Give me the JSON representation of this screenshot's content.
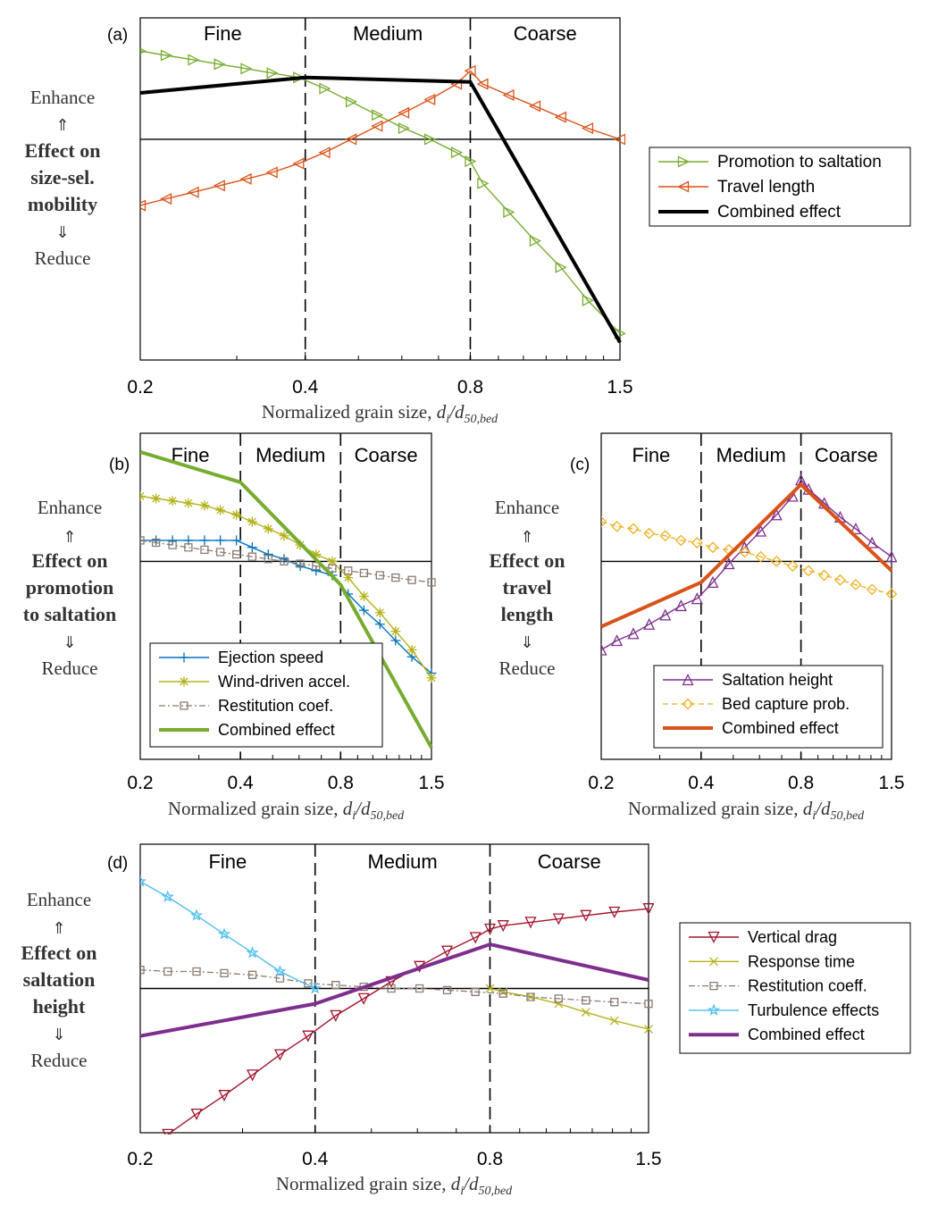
{
  "chart_data": [
    {
      "panel": "(a)",
      "type": "line",
      "x_scale": "log",
      "xlim": [
        0.2,
        1.5
      ],
      "ylim": [
        -1.0,
        0.55
      ],
      "xticks": [
        "0.2",
        "0.4",
        "0.8",
        "1.5"
      ],
      "xlabel": "Normalized grain size,",
      "xlabel_math": [
        "d",
        "i",
        "/d",
        "50,bed"
      ],
      "regions": [
        "Fine",
        "Medium",
        "Coarse"
      ],
      "region_bounds": [
        0.4,
        0.8
      ],
      "ylabel_lines": [
        "Effect on",
        "size-sel.",
        "mobility"
      ],
      "enhance": "Enhance",
      "reduce": "Reduce",
      "series": [
        {
          "name": "Promotion to saltation",
          "color": "#77ac30",
          "style": "thin",
          "marker": "tri-right",
          "x": [
            0.2,
            0.223,
            0.25,
            0.279,
            0.312,
            0.348,
            0.389,
            0.434,
            0.485,
            0.541,
            0.605,
            0.675,
            0.755,
            0.8,
            0.843,
            0.94,
            1.05,
            1.17,
            1.31,
            1.5
          ],
          "y": [
            0.4,
            0.38,
            0.36,
            0.34,
            0.32,
            0.3,
            0.28,
            0.23,
            0.17,
            0.11,
            0.05,
            0.0,
            -0.06,
            -0.1,
            -0.2,
            -0.33,
            -0.46,
            -0.58,
            -0.73,
            -0.88
          ]
        },
        {
          "name": "Travel length",
          "color": "#d95319",
          "style": "thin",
          "marker": "tri-left",
          "x": [
            0.2,
            0.223,
            0.25,
            0.279,
            0.312,
            0.348,
            0.389,
            0.434,
            0.485,
            0.541,
            0.605,
            0.675,
            0.755,
            0.8,
            0.843,
            0.94,
            1.05,
            1.17,
            1.31,
            1.5
          ],
          "y": [
            -0.3,
            -0.27,
            -0.24,
            -0.21,
            -0.18,
            -0.15,
            -0.11,
            -0.06,
            0.0,
            0.06,
            0.12,
            0.18,
            0.25,
            0.31,
            0.25,
            0.2,
            0.15,
            0.1,
            0.05,
            0.0
          ]
        },
        {
          "name": "Combined effect",
          "color": "#000000",
          "style": "thick",
          "marker": "none",
          "x": [
            0.2,
            0.4,
            0.8,
            1.5
          ],
          "y": [
            0.21,
            0.28,
            0.26,
            -0.92
          ]
        }
      ],
      "legend_position": "right"
    },
    {
      "panel": "(b)",
      "type": "line",
      "x_scale": "log",
      "xlim": [
        0.2,
        1.5
      ],
      "ylim": [
        -0.85,
        0.55
      ],
      "xticks": [
        "0.2",
        "0.4",
        "0.8",
        "1.5"
      ],
      "xlabel": "Normalized grain size,",
      "xlabel_math": [
        "d",
        "i",
        "/d",
        "50,bed"
      ],
      "regions": [
        "Fine",
        "Medium",
        "Coarse"
      ],
      "region_bounds": [
        0.4,
        0.8
      ],
      "ylabel_lines": [
        "Effect on",
        "promotion",
        "to saltation"
      ],
      "enhance": "Enhance",
      "reduce": "Reduce",
      "series": [
        {
          "name": "Ejection speed",
          "color": "#0072bd",
          "style": "thin",
          "marker": "plus",
          "x": [
            0.2,
            0.223,
            0.25,
            0.279,
            0.312,
            0.348,
            0.389,
            0.434,
            0.485,
            0.541,
            0.605,
            0.675,
            0.755,
            0.843,
            0.94,
            1.05,
            1.17,
            1.31,
            1.5
          ],
          "y": [
            0.09,
            0.09,
            0.09,
            0.09,
            0.09,
            0.09,
            0.09,
            0.06,
            0.03,
            0.01,
            -0.02,
            -0.04,
            -0.06,
            -0.14,
            -0.21,
            -0.27,
            -0.34,
            -0.41,
            -0.48
          ]
        },
        {
          "name": "Wind-driven accel.",
          "color": "#b5b21a",
          "style": "thin",
          "marker": "star",
          "x": [
            0.2,
            0.223,
            0.25,
            0.279,
            0.312,
            0.348,
            0.389,
            0.434,
            0.485,
            0.541,
            0.605,
            0.675,
            0.755,
            0.843,
            0.94,
            1.05,
            1.17,
            1.31,
            1.5
          ],
          "y": [
            0.28,
            0.27,
            0.26,
            0.25,
            0.24,
            0.22,
            0.2,
            0.17,
            0.14,
            0.11,
            0.07,
            0.03,
            0.0,
            -0.07,
            -0.15,
            -0.22,
            -0.3,
            -0.38,
            -0.5
          ]
        },
        {
          "name": "Restitution coef.",
          "color": "#8c7b70",
          "style": "dashdot",
          "marker": "square",
          "x": [
            0.2,
            0.223,
            0.25,
            0.279,
            0.312,
            0.348,
            0.389,
            0.434,
            0.485,
            0.541,
            0.605,
            0.675,
            0.755,
            0.843,
            0.94,
            1.05,
            1.17,
            1.31,
            1.5
          ],
          "y": [
            0.09,
            0.08,
            0.07,
            0.06,
            0.05,
            0.04,
            0.03,
            0.02,
            0.01,
            0.0,
            -0.01,
            -0.02,
            -0.03,
            -0.04,
            -0.05,
            -0.06,
            -0.07,
            -0.08,
            -0.09
          ]
        },
        {
          "name": "Combined effect",
          "color": "#77ac30",
          "style": "thick",
          "marker": "none",
          "x": [
            0.2,
            0.4,
            0.8,
            1.5
          ],
          "y": [
            0.47,
            0.34,
            -0.1,
            -0.8
          ]
        }
      ],
      "legend_position": "bottom-left"
    },
    {
      "panel": "(c)",
      "type": "line",
      "x_scale": "log",
      "xlim": [
        0.2,
        1.5
      ],
      "ylim": [
        -0.85,
        0.55
      ],
      "xticks": [
        "0.2",
        "0.4",
        "0.8",
        "1.5"
      ],
      "xlabel": "Normalized grain size,",
      "xlabel_math": [
        "d",
        "i",
        "/d",
        "50,bed"
      ],
      "regions": [
        "Fine",
        "Medium",
        "Coarse"
      ],
      "region_bounds": [
        0.4,
        0.8
      ],
      "ylabel_lines": [
        "Effect on",
        "travel",
        "length"
      ],
      "enhance": "Enhance",
      "reduce": "Reduce",
      "series": [
        {
          "name": "Saltation height",
          "color": "#7e2f8e",
          "style": "thin",
          "marker": "tri-up",
          "x": [
            0.2,
            0.223,
            0.25,
            0.279,
            0.312,
            0.348,
            0.389,
            0.434,
            0.485,
            0.541,
            0.605,
            0.675,
            0.755,
            0.8,
            0.843,
            0.94,
            1.05,
            1.17,
            1.31,
            1.5
          ],
          "y": [
            -0.38,
            -0.34,
            -0.31,
            -0.27,
            -0.23,
            -0.19,
            -0.16,
            -0.09,
            -0.01,
            0.06,
            0.13,
            0.2,
            0.28,
            0.35,
            0.31,
            0.25,
            0.19,
            0.14,
            0.08,
            0.02
          ]
        },
        {
          "name": "Bed capture prob.",
          "color": "#edb120",
          "style": "dashed",
          "marker": "diamond",
          "x": [
            0.2,
            0.223,
            0.25,
            0.279,
            0.312,
            0.348,
            0.389,
            0.434,
            0.485,
            0.541,
            0.605,
            0.675,
            0.755,
            0.843,
            0.94,
            1.05,
            1.17,
            1.31,
            1.5
          ],
          "y": [
            0.17,
            0.15,
            0.14,
            0.12,
            0.11,
            0.09,
            0.08,
            0.06,
            0.05,
            0.04,
            0.02,
            0.0,
            -0.02,
            -0.04,
            -0.06,
            -0.08,
            -0.1,
            -0.12,
            -0.14
          ]
        },
        {
          "name": "Combined effect",
          "color": "#d95319",
          "style": "thick",
          "marker": "none",
          "x": [
            0.2,
            0.4,
            0.8,
            1.5
          ],
          "y": [
            -0.28,
            -0.09,
            0.33,
            -0.04
          ]
        }
      ],
      "legend_position": "bottom-right"
    },
    {
      "panel": "(d)",
      "type": "line",
      "x_scale": "log",
      "xlim": [
        0.2,
        1.5
      ],
      "ylim": [
        -0.85,
        0.85
      ],
      "xticks": [
        "0.2",
        "0.4",
        "0.8",
        "1.5"
      ],
      "xlabel": "Normalized grain size,",
      "xlabel_math": [
        "d",
        "i",
        "/d",
        "50,bed"
      ],
      "regions": [
        "Fine",
        "Medium",
        "Coarse"
      ],
      "region_bounds": [
        0.4,
        0.8
      ],
      "ylabel_lines": [
        "Effect on",
        "saltation",
        "height"
      ],
      "enhance": "Enhance",
      "reduce": "Reduce",
      "series": [
        {
          "name": "Vertical drag",
          "color": "#a2142f",
          "style": "thin",
          "marker": "tri-down",
          "x": [
            0.223,
            0.25,
            0.279,
            0.312,
            0.348,
            0.389,
            0.434,
            0.485,
            0.541,
            0.605,
            0.675,
            0.755,
            0.8,
            0.843,
            0.94,
            1.05,
            1.17,
            1.31,
            1.5
          ],
          "y": [
            -0.86,
            -0.74,
            -0.63,
            -0.51,
            -0.39,
            -0.28,
            -0.16,
            -0.06,
            0.04,
            0.13,
            0.22,
            0.3,
            0.35,
            0.37,
            0.39,
            0.41,
            0.43,
            0.45,
            0.47
          ]
        },
        {
          "name": "Response time",
          "color": "#b5b21a",
          "style": "thin",
          "marker": "cross",
          "x": [
            0.8,
            0.843,
            0.94,
            1.05,
            1.17,
            1.31,
            1.5
          ],
          "y": [
            0.0,
            -0.02,
            -0.05,
            -0.09,
            -0.14,
            -0.19,
            -0.24
          ]
        },
        {
          "name": "Restitution coeff.",
          "color": "#8c7b70",
          "style": "dashdot",
          "marker": "square",
          "x": [
            0.2,
            0.223,
            0.25,
            0.279,
            0.312,
            0.348,
            0.389,
            0.434,
            0.485,
            0.541,
            0.605,
            0.675,
            0.755,
            0.843,
            0.94,
            1.05,
            1.17,
            1.31,
            1.5
          ],
          "y": [
            0.11,
            0.1,
            0.1,
            0.09,
            0.08,
            0.06,
            0.03,
            0.02,
            0.01,
            0.0,
            0.0,
            -0.01,
            -0.02,
            -0.03,
            -0.05,
            -0.06,
            -0.07,
            -0.08,
            -0.09
          ]
        },
        {
          "name": "Turbulence effects",
          "color": "#4dbeee",
          "style": "thin",
          "marker": "pentagram",
          "x": [
            0.2,
            0.223,
            0.25,
            0.279,
            0.312,
            0.348,
            0.4
          ],
          "y": [
            0.63,
            0.54,
            0.43,
            0.32,
            0.21,
            0.1,
            0.0
          ]
        },
        {
          "name": "Combined effect",
          "color": "#7e2f8e",
          "style": "thick",
          "marker": "none",
          "x": [
            0.2,
            0.4,
            0.8,
            1.5
          ],
          "y": [
            -0.28,
            -0.09,
            0.26,
            0.05
          ]
        }
      ],
      "legend_position": "right"
    }
  ]
}
